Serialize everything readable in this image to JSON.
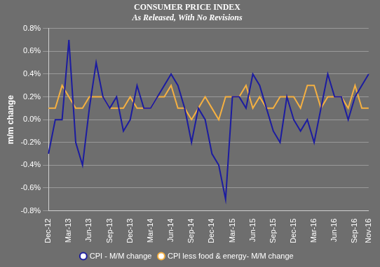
{
  "chart_data": {
    "type": "line",
    "title": "CONSUMER PRICE INDEX",
    "subtitle": "As Released, With No Revisions",
    "y_label": "m/m change",
    "categories": [
      "Dec-12",
      null,
      null,
      "Mar-13",
      null,
      null,
      "Jun-13",
      null,
      null,
      "Sep-13",
      null,
      null,
      "Dec-13",
      null,
      null,
      "Mar-14",
      null,
      null,
      "Jun-14",
      null,
      null,
      "Sep-14",
      null,
      null,
      "Dec-14",
      null,
      null,
      "Mar-15",
      null,
      null,
      "Jun-15",
      null,
      null,
      "Sep-15",
      null,
      null,
      "Dec-15",
      null,
      null,
      "Mar-16",
      null,
      null,
      "Jun-16",
      null,
      null,
      "Sep-16",
      null,
      "Nov-16"
    ],
    "series": [
      {
        "name": "CPI - M/M change",
        "color": "#1c1ca0",
        "values": [
          -0.3,
          0.0,
          0.0,
          0.7,
          -0.2,
          -0.4,
          0.1,
          0.5,
          0.2,
          0.1,
          0.2,
          -0.1,
          0.0,
          0.3,
          0.1,
          0.1,
          0.2,
          0.3,
          0.4,
          0.3,
          0.1,
          -0.2,
          0.1,
          0.0,
          -0.3,
          -0.4,
          -0.7,
          0.2,
          0.2,
          0.1,
          0.4,
          0.3,
          0.1,
          -0.1,
          -0.2,
          0.2,
          0.0,
          -0.1,
          0.0,
          -0.2,
          0.1,
          0.4,
          0.2,
          0.2,
          0.0,
          0.2,
          0.3,
          0.4
        ]
      },
      {
        "name": "CPI less food & energy- M/M change",
        "color": "#f5b041",
        "values": [
          0.1,
          0.1,
          0.3,
          0.2,
          0.1,
          0.1,
          0.2,
          0.2,
          0.2,
          0.1,
          0.1,
          0.1,
          0.2,
          0.1,
          0.1,
          0.1,
          0.2,
          0.2,
          0.3,
          0.1,
          0.1,
          0.0,
          0.1,
          0.2,
          0.1,
          0.0,
          0.2,
          0.2,
          0.2,
          0.3,
          0.1,
          0.2,
          0.1,
          0.1,
          0.2,
          0.2,
          0.2,
          0.1,
          0.3,
          0.3,
          0.1,
          0.2,
          0.2,
          0.2,
          0.1,
          0.3,
          0.1,
          0.1
        ]
      }
    ],
    "ylim": [
      -0.8,
      0.8
    ],
    "yticks": [
      {
        "value": -0.8,
        "label": "-0.8%"
      },
      {
        "value": -0.6,
        "label": "-0.6%"
      },
      {
        "value": -0.4,
        "label": "-0.4%"
      },
      {
        "value": -0.2,
        "label": "-0.2%"
      },
      {
        "value": 0.0,
        "label": "0.0%"
      },
      {
        "value": 0.2,
        "label": "0.2%"
      },
      {
        "value": 0.4,
        "label": "0.4%"
      },
      {
        "value": 0.6,
        "label": "0.6%"
      },
      {
        "value": 0.8,
        "label": "0.8%"
      }
    ],
    "grid": true,
    "legend": "bottom"
  }
}
